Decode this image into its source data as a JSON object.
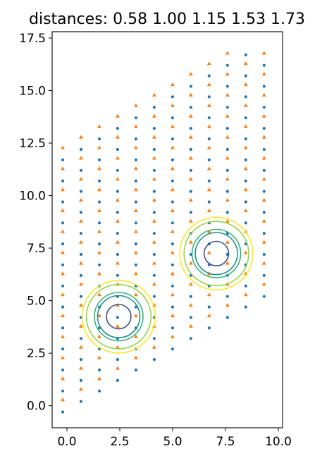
{
  "chart_data": {
    "type": "scatter",
    "title": "distances: 0.58 1.00 1.15 1.53 1.73",
    "xlabel": "",
    "ylabel": "",
    "xlim": [
      -0.7,
      10.2
    ],
    "ylim": [
      -1.05,
      17.8
    ],
    "xticks": [
      0.0,
      2.5,
      5.0,
      7.5,
      10.0
    ],
    "xtick_labels": [
      "0.0",
      "2.5",
      "5.0",
      "7.5",
      "10.0"
    ],
    "yticks": [
      0.0,
      2.5,
      5.0,
      7.5,
      10.0,
      12.5,
      15.0,
      17.5
    ],
    "ytick_labels": [
      "0.0",
      "2.5",
      "5.0",
      "7.5",
      "10.0",
      "12.5",
      "15.0",
      "17.5"
    ],
    "grid": false,
    "lattice": {
      "a1": [
        1.0,
        0.0
      ],
      "a2": [
        -0.5,
        0.866
      ],
      "shear": [
        0,
        0.5774
      ],
      "n_range": [
        0,
        11
      ],
      "m_range": [
        0,
        12
      ],
      "x_bounds": [
        -0.3,
        10.0
      ],
      "y_bounds": [
        -0.4,
        17.0
      ]
    },
    "series": [
      {
        "kind": "dot",
        "color": "#1f77b4",
        "offset": [
          0.0,
          0.0
        ]
      },
      {
        "kind": "triangle",
        "color": "#ff7f0e",
        "offset": [
          0.0,
          0.5774
        ]
      }
    ],
    "circles": {
      "centers": [
        [
          2.45,
          4.24
        ],
        [
          7.07,
          7.24
        ]
      ],
      "radii": [
        0.58,
        1.0,
        1.15,
        1.53,
        1.73
      ],
      "colors": [
        "#3b528b",
        "#21918c",
        "#35b779",
        "#90d743",
        "#fde725"
      ]
    }
  }
}
